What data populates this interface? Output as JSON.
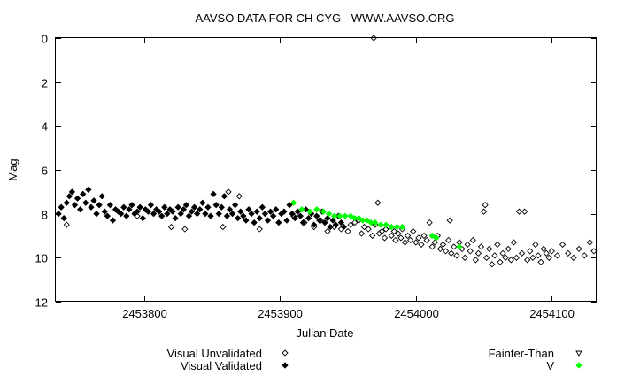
{
  "chart_data": {
    "type": "scatter",
    "title": "AAVSO DATA FOR CH CYG - WWW.AAVSO.ORG",
    "xlabel": "Julian Date",
    "ylabel": "Mag",
    "xlim": [
      2453735,
      2454133
    ],
    "ylim": [
      0,
      12
    ],
    "y_inverted": true,
    "x_ticks": [
      2453800,
      2453900,
      2454000,
      2454100
    ],
    "y_ticks": [
      0,
      2,
      4,
      6,
      8,
      10,
      12
    ],
    "grid": false,
    "legend_position": "bottom",
    "series": [
      {
        "name": "Visual Unvalidated",
        "marker": "open-diamond",
        "color": "#000000",
        "points": [
          [
            2453743,
            8.5
          ],
          [
            2453795,
            8.1
          ],
          [
            2453820,
            8.6
          ],
          [
            2453830,
            8.7
          ],
          [
            2453858,
            8.6
          ],
          [
            2453862,
            7.0
          ],
          [
            2453870,
            7.2
          ],
          [
            2453885,
            8.7
          ],
          [
            2453910,
            8.1
          ],
          [
            2453918,
            8.4
          ],
          [
            2453925,
            8.6
          ],
          [
            2453930,
            8.3
          ],
          [
            2453935,
            8.8
          ],
          [
            2453940,
            8.6
          ],
          [
            2453945,
            8.7
          ],
          [
            2453950,
            8.8
          ],
          [
            2453952,
            8.5
          ],
          [
            2453955,
            8.4
          ],
          [
            2453958,
            8.3
          ],
          [
            2453960,
            8.9
          ],
          [
            2453962,
            8.6
          ],
          [
            2453965,
            8.7
          ],
          [
            2453968,
            9.0
          ],
          [
            2453969,
            0.0
          ],
          [
            2453970,
            8.5
          ],
          [
            2453972,
            7.5
          ],
          [
            2453973,
            8.9
          ],
          [
            2453975,
            8.8
          ],
          [
            2453977,
            9.1
          ],
          [
            2453978,
            8.7
          ],
          [
            2453980,
            8.6
          ],
          [
            2453982,
            9.0
          ],
          [
            2453984,
            8.8
          ],
          [
            2453985,
            9.2
          ],
          [
            2453987,
            8.9
          ],
          [
            2453989,
            9.1
          ],
          [
            2453990,
            8.7
          ],
          [
            2453992,
            9.3
          ],
          [
            2453994,
            9.0
          ],
          [
            2453996,
            9.2
          ],
          [
            2453998,
            8.8
          ],
          [
            2454000,
            9.3
          ],
          [
            2454002,
            9.1
          ],
          [
            2454004,
            9.4
          ],
          [
            2454006,
            9.0
          ],
          [
            2454008,
            9.2
          ],
          [
            2454010,
            8.4
          ],
          [
            2454012,
            9.5
          ],
          [
            2454014,
            9.3
          ],
          [
            2454016,
            9.0
          ],
          [
            2454018,
            9.6
          ],
          [
            2454020,
            9.4
          ],
          [
            2454022,
            9.7
          ],
          [
            2454024,
            9.2
          ],
          [
            2454025,
            8.3
          ],
          [
            2454026,
            9.8
          ],
          [
            2454028,
            9.5
          ],
          [
            2454030,
            9.9
          ],
          [
            2454032,
            9.3
          ],
          [
            2454034,
            9.6
          ],
          [
            2454036,
            10.0
          ],
          [
            2454038,
            9.4
          ],
          [
            2454040,
            9.7
          ],
          [
            2454042,
            9.2
          ],
          [
            2454044,
            10.1
          ],
          [
            2454046,
            9.8
          ],
          [
            2454048,
            9.5
          ],
          [
            2454050,
            7.9
          ],
          [
            2454051,
            7.6
          ],
          [
            2454052,
            10.0
          ],
          [
            2454054,
            9.6
          ],
          [
            2454056,
            10.3
          ],
          [
            2454058,
            9.9
          ],
          [
            2454060,
            9.4
          ],
          [
            2454062,
            10.2
          ],
          [
            2454064,
            9.8
          ],
          [
            2454066,
            10.0
          ],
          [
            2454068,
            9.6
          ],
          [
            2454070,
            10.1
          ],
          [
            2454072,
            9.3
          ],
          [
            2454074,
            10.0
          ],
          [
            2454076,
            7.9
          ],
          [
            2454078,
            9.8
          ],
          [
            2454080,
            7.9
          ],
          [
            2454082,
            10.1
          ],
          [
            2454084,
            9.7
          ],
          [
            2454086,
            10.0
          ],
          [
            2454088,
            9.4
          ],
          [
            2454090,
            9.9
          ],
          [
            2454092,
            10.2
          ],
          [
            2454094,
            9.6
          ],
          [
            2454096,
            9.8
          ],
          [
            2454098,
            10.0
          ],
          [
            2454100,
            9.7
          ],
          [
            2454104,
            9.9
          ],
          [
            2454108,
            9.4
          ],
          [
            2454112,
            9.8
          ],
          [
            2454116,
            10.0
          ],
          [
            2454120,
            9.6
          ],
          [
            2454124,
            9.9
          ],
          [
            2454128,
            9.3
          ],
          [
            2454131,
            9.7
          ]
        ]
      },
      {
        "name": "Visual Validated",
        "marker": "filled-diamond",
        "color": "#000000",
        "points": [
          [
            2453737,
            8.0
          ],
          [
            2453739,
            7.7
          ],
          [
            2453741,
            8.2
          ],
          [
            2453743,
            7.5
          ],
          [
            2453745,
            7.2
          ],
          [
            2453747,
            7.0
          ],
          [
            2453749,
            7.6
          ],
          [
            2453751,
            7.3
          ],
          [
            2453753,
            7.8
          ],
          [
            2453755,
            7.1
          ],
          [
            2453757,
            7.5
          ],
          [
            2453759,
            6.9
          ],
          [
            2453761,
            7.7
          ],
          [
            2453763,
            7.4
          ],
          [
            2453765,
            8.0
          ],
          [
            2453767,
            7.6
          ],
          [
            2453769,
            7.2
          ],
          [
            2453771,
            7.9
          ],
          [
            2453773,
            8.1
          ],
          [
            2453775,
            7.6
          ],
          [
            2453777,
            8.3
          ],
          [
            2453779,
            7.8
          ],
          [
            2453781,
            7.9
          ],
          [
            2453783,
            8.0
          ],
          [
            2453785,
            7.7
          ],
          [
            2453787,
            8.1
          ],
          [
            2453789,
            7.8
          ],
          [
            2453791,
            7.6
          ],
          [
            2453793,
            8.0
          ],
          [
            2453795,
            7.9
          ],
          [
            2453797,
            7.7
          ],
          [
            2453799,
            8.2
          ],
          [
            2453801,
            7.8
          ],
          [
            2453803,
            7.9
          ],
          [
            2453805,
            7.6
          ],
          [
            2453807,
            8.0
          ],
          [
            2453809,
            7.8
          ],
          [
            2453811,
            7.9
          ],
          [
            2453813,
            8.1
          ],
          [
            2453815,
            7.7
          ],
          [
            2453817,
            8.0
          ],
          [
            2453819,
            7.8
          ],
          [
            2453821,
            7.9
          ],
          [
            2453823,
            8.2
          ],
          [
            2453825,
            7.7
          ],
          [
            2453827,
            8.0
          ],
          [
            2453829,
            7.8
          ],
          [
            2453831,
            7.6
          ],
          [
            2453833,
            8.1
          ],
          [
            2453835,
            7.9
          ],
          [
            2453837,
            7.7
          ],
          [
            2453839,
            8.0
          ],
          [
            2453841,
            7.8
          ],
          [
            2453843,
            7.5
          ],
          [
            2453845,
            8.0
          ],
          [
            2453847,
            7.7
          ],
          [
            2453849,
            8.1
          ],
          [
            2453851,
            7.1
          ],
          [
            2453853,
            7.6
          ],
          [
            2453855,
            8.0
          ],
          [
            2453857,
            7.7
          ],
          [
            2453859,
            7.2
          ],
          [
            2453861,
            8.1
          ],
          [
            2453863,
            7.8
          ],
          [
            2453865,
            8.0
          ],
          [
            2453867,
            7.6
          ],
          [
            2453869,
            8.2
          ],
          [
            2453871,
            7.9
          ],
          [
            2453873,
            8.1
          ],
          [
            2453875,
            8.3
          ],
          [
            2453877,
            7.8
          ],
          [
            2453879,
            8.0
          ],
          [
            2453881,
            8.4
          ],
          [
            2453883,
            7.9
          ],
          [
            2453885,
            8.2
          ],
          [
            2453887,
            7.7
          ],
          [
            2453889,
            8.0
          ],
          [
            2453891,
            8.3
          ],
          [
            2453893,
            7.9
          ],
          [
            2453895,
            8.1
          ],
          [
            2453897,
            7.8
          ],
          [
            2453899,
            8.4
          ],
          [
            2453901,
            8.0
          ],
          [
            2453903,
            7.9
          ],
          [
            2453905,
            8.3
          ],
          [
            2453907,
            7.6
          ],
          [
            2453909,
            8.0
          ],
          [
            2453911,
            8.2
          ],
          [
            2453913,
            7.9
          ],
          [
            2453915,
            8.1
          ],
          [
            2453917,
            8.4
          ],
          [
            2453919,
            7.8
          ],
          [
            2453921,
            8.2
          ],
          [
            2453923,
            8.0
          ],
          [
            2453925,
            8.5
          ],
          [
            2453927,
            8.1
          ],
          [
            2453929,
            8.3
          ],
          [
            2453931,
            7.9
          ],
          [
            2453933,
            8.4
          ],
          [
            2453935,
            8.2
          ],
          [
            2453937,
            8.6
          ],
          [
            2453939,
            8.3
          ],
          [
            2453941,
            8.5
          ],
          [
            2453943,
            8.1
          ],
          [
            2453945,
            8.4
          ],
          [
            2453947,
            8.6
          ]
        ]
      },
      {
        "name": "Fainter-Than",
        "marker": "open-triangle-down",
        "color": "#000000",
        "points": []
      },
      {
        "name": "V",
        "marker": "filled-diamond",
        "color": "#00ff00",
        "points": [
          [
            2453910,
            7.5
          ],
          [
            2453916,
            7.8
          ],
          [
            2453922,
            7.9
          ],
          [
            2453927,
            7.8
          ],
          [
            2453932,
            7.9
          ],
          [
            2453936,
            8.0
          ],
          [
            2453940,
            8.1
          ],
          [
            2453944,
            8.1
          ],
          [
            2453948,
            8.1
          ],
          [
            2453952,
            8.1
          ],
          [
            2453955,
            8.2
          ],
          [
            2453958,
            8.2
          ],
          [
            2453961,
            8.3
          ],
          [
            2453964,
            8.3
          ],
          [
            2453967,
            8.4
          ],
          [
            2453970,
            8.4
          ],
          [
            2453974,
            8.5
          ],
          [
            2453978,
            8.5
          ],
          [
            2453982,
            8.6
          ],
          [
            2453986,
            8.6
          ],
          [
            2453990,
            8.6
          ],
          [
            2454012,
            9.0
          ],
          [
            2454015,
            9.1
          ],
          [
            2454032,
            9.5
          ]
        ]
      }
    ]
  }
}
